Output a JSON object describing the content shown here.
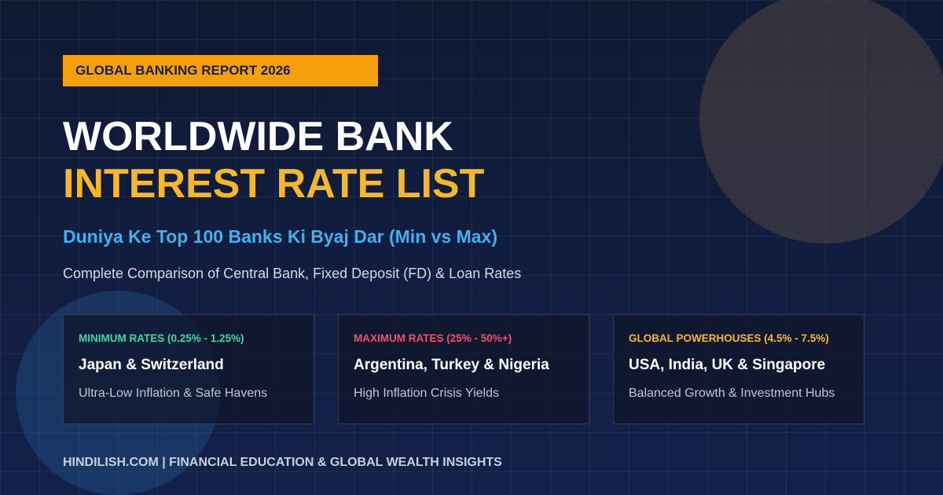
{
  "header": {
    "badge": "GLOBAL BANKING REPORT 2026",
    "title_line1": "WORLDWIDE BANK",
    "title_line2": "INTEREST RATE LIST",
    "subtitle": "Duniya Ke Top 100 Banks Ki Byaj Dar (Min vs Max)",
    "description": "Complete Comparison of Central Bank, Fixed Deposit (FD) & Loan Rates"
  },
  "cards": [
    {
      "label": "MINIMUM RATES (0.25% - 1.25%)",
      "title": "Japan & Switzerland",
      "text": "Ultra-Low Inflation & Safe Havens",
      "color": "#3ed6a0"
    },
    {
      "label": "MAXIMUM RATES (25% - 50%+)",
      "title": "Argentina, Turkey & Nigeria",
      "text": "High Inflation Crisis Yields",
      "color": "#f0506e"
    },
    {
      "label": "GLOBAL POWERHOUSES (4.5% - 7.5%)",
      "title": "USA, India, UK & Singapore",
      "text": "Balanced Growth & Investment Hubs",
      "color": "#f5b82a"
    }
  ],
  "footer": "HINDILISH.COM | FINANCIAL EDUCATION & GLOBAL WEALTH INSIGHTS"
}
